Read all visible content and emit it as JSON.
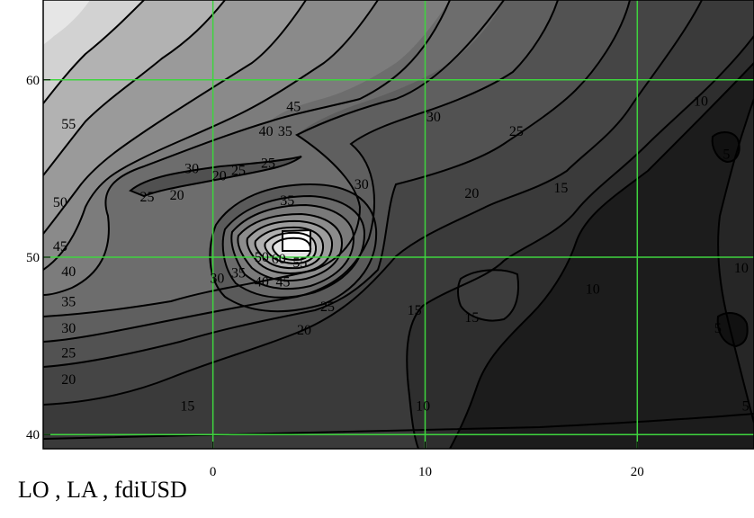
{
  "chart_data": {
    "type": "contour",
    "x_axis": {
      "min": -8,
      "max": 25.5,
      "ticks": [
        0,
        10,
        20
      ],
      "tick_labels": [
        "0",
        "10",
        "20"
      ]
    },
    "y_axis": {
      "min": 39.2,
      "max": 64.5,
      "ticks": [
        40,
        50,
        60
      ],
      "tick_labels": [
        "40",
        "50",
        "60"
      ]
    },
    "grid": true,
    "grid_color": "#3ed43e",
    "contour_levels": [
      5,
      10,
      15,
      20,
      25,
      30,
      35,
      40,
      45,
      50,
      55,
      60
    ],
    "contour_labels": [
      {
        "text": "55",
        "x": -6.8,
        "y": 57.5
      },
      {
        "text": "50",
        "x": -7.2,
        "y": 53.1
      },
      {
        "text": "45",
        "x": -7.2,
        "y": 50.6
      },
      {
        "text": "40",
        "x": -6.8,
        "y": 49.2
      },
      {
        "text": "35",
        "x": -6.8,
        "y": 47.5
      },
      {
        "text": "30",
        "x": -6.8,
        "y": 46.0
      },
      {
        "text": "25",
        "x": -6.8,
        "y": 44.6
      },
      {
        "text": "20",
        "x": -6.8,
        "y": 43.1
      },
      {
        "text": "45",
        "x": 3.8,
        "y": 58.5
      },
      {
        "text": "40",
        "x": 2.5,
        "y": 57.1
      },
      {
        "text": "35",
        "x": 3.4,
        "y": 57.1
      },
      {
        "text": "30",
        "x": -1.0,
        "y": 55.0
      },
      {
        "text": "20",
        "x": 0.3,
        "y": 54.6
      },
      {
        "text": "25",
        "x": 1.2,
        "y": 54.9
      },
      {
        "text": "25",
        "x": 2.6,
        "y": 55.3
      },
      {
        "text": "25",
        "x": -3.1,
        "y": 53.4
      },
      {
        "text": "20",
        "x": -1.7,
        "y": 53.5
      },
      {
        "text": "30",
        "x": 7.0,
        "y": 54.1
      },
      {
        "text": "35",
        "x": 3.5,
        "y": 53.2
      },
      {
        "text": "30",
        "x": 10.4,
        "y": 57.9
      },
      {
        "text": "25",
        "x": 14.3,
        "y": 57.1
      },
      {
        "text": "20",
        "x": 12.2,
        "y": 53.6
      },
      {
        "text": "15",
        "x": 16.4,
        "y": 53.9
      },
      {
        "text": "10",
        "x": 23.0,
        "y": 58.8
      },
      {
        "text": "5",
        "x": 24.2,
        "y": 55.8
      },
      {
        "text": "10",
        "x": 24.9,
        "y": 49.4
      },
      {
        "text": "5",
        "x": 23.8,
        "y": 46.0
      },
      {
        "text": "5",
        "x": 25.1,
        "y": 41.6
      },
      {
        "text": "50",
        "x": 2.3,
        "y": 50.0
      },
      {
        "text": "60",
        "x": 3.1,
        "y": 49.9
      },
      {
        "text": "55",
        "x": 4.1,
        "y": 49.7
      },
      {
        "text": "40",
        "x": 2.3,
        "y": 48.6
      },
      {
        "text": "45",
        "x": 3.3,
        "y": 48.6
      },
      {
        "text": "35",
        "x": 1.2,
        "y": 49.1
      },
      {
        "text": "30",
        "x": 0.2,
        "y": 48.8
      },
      {
        "text": "25",
        "x": 5.4,
        "y": 47.2
      },
      {
        "text": "20",
        "x": 4.3,
        "y": 45.9
      },
      {
        "text": "15",
        "x": 9.5,
        "y": 47.0
      },
      {
        "text": "15",
        "x": 12.2,
        "y": 46.6
      },
      {
        "text": "10",
        "x": 17.9,
        "y": 48.2
      },
      {
        "text": "10",
        "x": 9.9,
        "y": 41.6
      },
      {
        "text": "15",
        "x": -1.2,
        "y": 41.6
      }
    ]
  },
  "caption": "LO , LA , fdiUSD"
}
